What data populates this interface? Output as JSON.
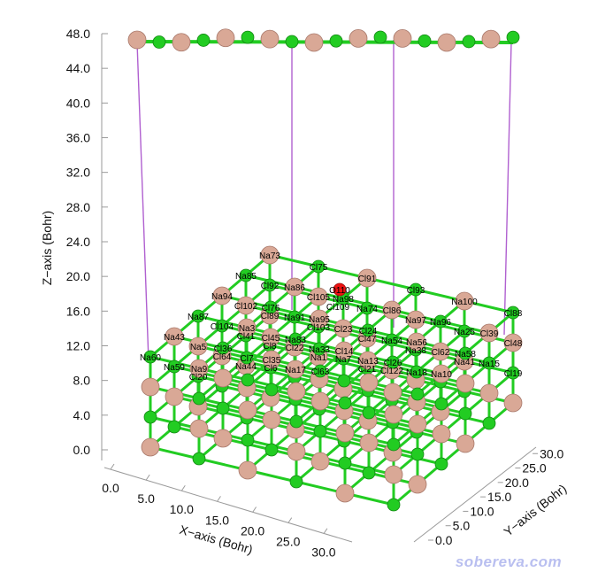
{
  "axes": {
    "z": {
      "title": "Z−axis (Bohr)",
      "ticks": [
        "48.0",
        "44.0",
        "40.0",
        "36.0",
        "32.0",
        "28.0",
        "24.0",
        "20.0",
        "16.0",
        "12.0",
        "8.0",
        "4.0",
        "0.0"
      ]
    },
    "x": {
      "title": "X−axis (Bohr)",
      "ticks": [
        "0.0",
        "5.0",
        "10.0",
        "15.0",
        "20.0",
        "25.0",
        "30.0"
      ]
    },
    "y": {
      "title": "Y−axis (Bohr)",
      "ticks": [
        "0.0",
        "5.0",
        "10.0",
        "15.0",
        "20.0",
        "25.0",
        "30.0"
      ]
    }
  },
  "atom_colors": {
    "Na": "#d9a896",
    "Cl": "#22cc22",
    "O": "#ee1111",
    "bond": "#22cc22",
    "link": "#b060d0"
  },
  "molecule_labels": [
    "O110",
    "Cl109"
  ],
  "atom_labels": [
    "Na73",
    "Cl75",
    "Na85",
    "Cl91",
    "Cl92",
    "Na86",
    "Cl93",
    "Na94",
    "Cl105",
    "Na98",
    "Na100",
    "Cl102",
    "Cl76",
    "Na74",
    "Cl86",
    "Cl88",
    "Cl89",
    "Na87",
    "Na91",
    "Na95",
    "Na97",
    "Na96",
    "Cl104",
    "Cl103",
    "Na3",
    "Cl23",
    "Cl24",
    "Na25",
    "Cl39",
    "Cl41",
    "Na43",
    "Cl45",
    "Cl47",
    "Na83",
    "Na54",
    "Na56",
    "Cl48",
    "Cl8",
    "Na5",
    "Cl22",
    "Cl36",
    "Na33",
    "Na38",
    "Cl14",
    "Cl62",
    "Na58",
    "Cl64",
    "Na60",
    "Na1",
    "Cl7",
    "Na7",
    "Cl35",
    "Na13",
    "Na41",
    "Cl26",
    "Na15",
    "Na44",
    "Na59",
    "Cl6",
    "Na9",
    "Cl21",
    "Na17",
    "Cl122",
    "Cl63",
    "Na18",
    "Cl19",
    "Na10",
    "Cl20"
  ],
  "watermark": "sobereva.com"
}
